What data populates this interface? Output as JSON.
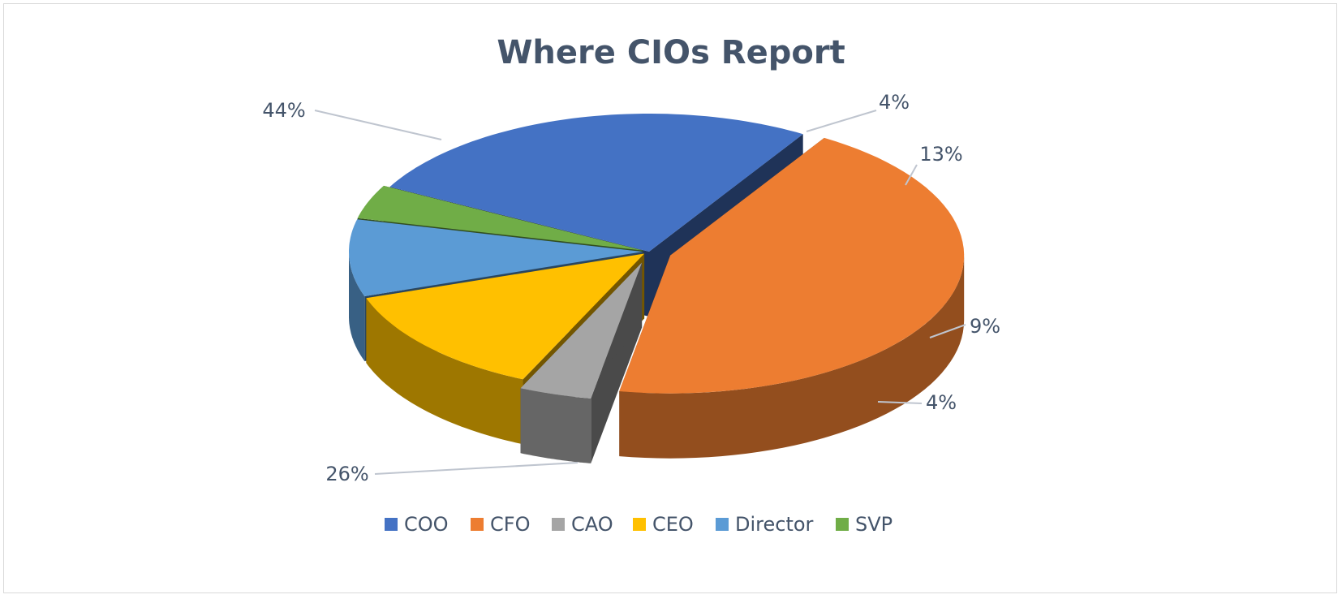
{
  "chart_data": {
    "type": "pie",
    "title": "Where CIOs Report",
    "categories": [
      "COO",
      "CFO",
      "CAO",
      "CEO",
      "Director",
      "SVP"
    ],
    "values": [
      26,
      44,
      4,
      13,
      9,
      4
    ],
    "labels": [
      "26%",
      "44%",
      "4%",
      "13%",
      "9%",
      "4%"
    ],
    "colors": [
      "#4472c4",
      "#ed7d31",
      "#a5a5a5",
      "#ffc000",
      "#5b9bd5",
      "#70ad47"
    ],
    "three_d": true,
    "exploded": true,
    "legend_position": "bottom"
  }
}
